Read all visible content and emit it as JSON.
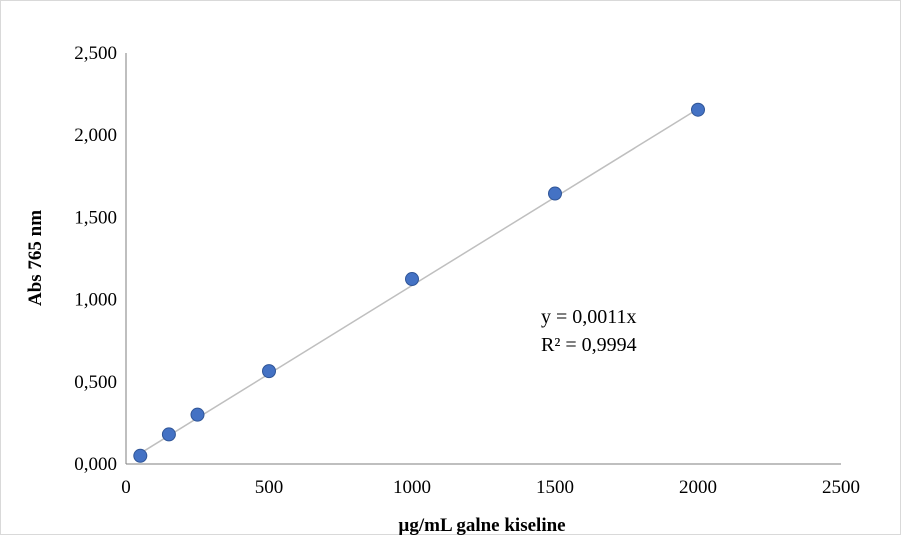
{
  "chart_data": {
    "type": "scatter",
    "title": "",
    "xlabel": "µg/mL galne kiseline",
    "ylabel": "Abs 765 nm",
    "xlim": [
      0,
      2500
    ],
    "ylim": [
      0,
      2.5
    ],
    "x_ticks": [
      0,
      500,
      1000,
      1500,
      2000,
      2500
    ],
    "x_tick_labels": [
      "0",
      "500",
      "1000",
      "1500",
      "2000",
      "2500"
    ],
    "y_ticks": [
      0,
      0.5,
      1.0,
      1.5,
      2.0,
      2.5
    ],
    "y_tick_labels": [
      "0,000",
      "0,500",
      "1,000",
      "1,500",
      "2,000",
      "2,500"
    ],
    "grid": false,
    "legend": "none",
    "series": [
      {
        "x": [
          50,
          150,
          250,
          500,
          1000,
          1500,
          2000
        ],
        "y": [
          0.05,
          0.18,
          0.3,
          0.565,
          1.125,
          1.645,
          2.155
        ],
        "color": "#4472c4"
      }
    ],
    "trendline": {
      "type": "linear",
      "slope": 0.0011,
      "x_range": [
        50,
        2000
      ],
      "y_range": [
        0.065,
        2.16
      ],
      "color": "#bfbfbf"
    },
    "annotations": [
      "y = 0,0011x",
      "R² = 0,9994"
    ]
  }
}
